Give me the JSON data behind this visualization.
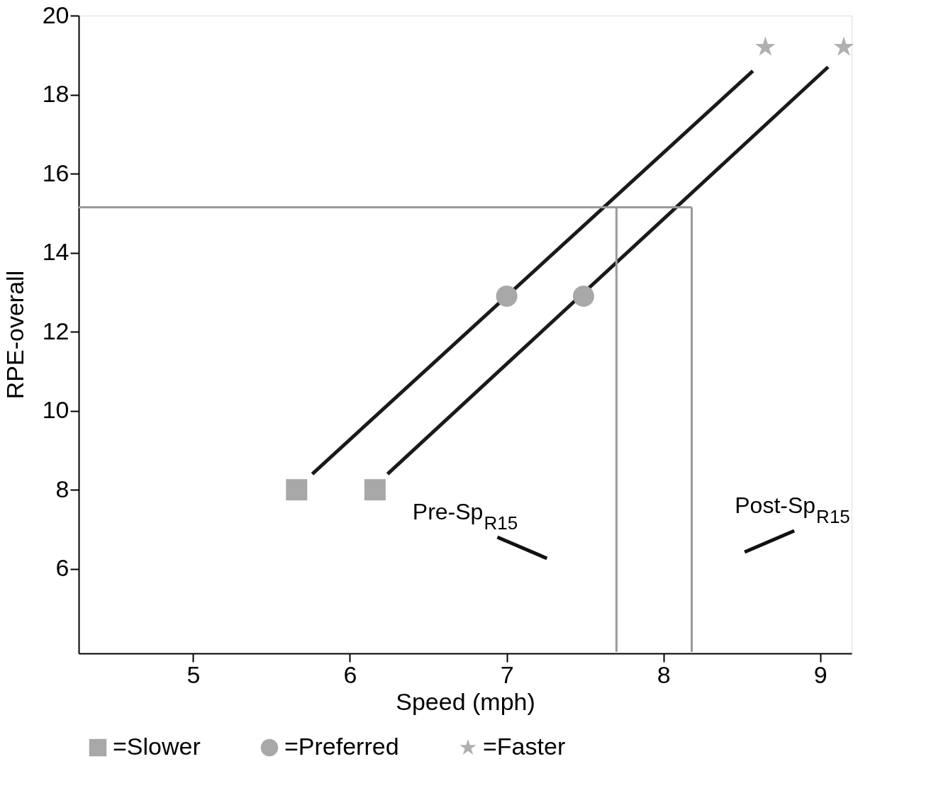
{
  "chart_data": {
    "type": "line",
    "xlabel": "Speed (mph)",
    "ylabel": "RPE-overall",
    "xlim": [
      4.27,
      9.2
    ],
    "ylim": [
      3.86,
      20
    ],
    "xticks": [
      5,
      6,
      7,
      8,
      9
    ],
    "yticks": [
      6,
      8,
      10,
      12,
      14,
      16,
      18,
      20
    ],
    "grid": false,
    "legend": "bottom",
    "series": [
      {
        "color": "#1a1a1a",
        "x": [
          5.76,
          8.57
        ],
        "values": [
          8.4,
          18.6
        ]
      },
      {
        "color": "#1a1a1a",
        "x": [
          6.24,
          9.05
        ],
        "values": [
          8.4,
          18.7
        ]
      },
      {
        "type": "line",
        "color": "#9a9a9a",
        "x": [
          4.27,
          8.18
        ],
        "values": [
          15.15,
          15.15
        ]
      },
      {
        "type": "line",
        "color": "#9a9a9a",
        "x": [
          7.7,
          7.7
        ],
        "values": [
          15.15,
          3.9
        ]
      },
      {
        "type": "line",
        "color": "#9a9a9a",
        "x": [
          8.18,
          8.18
        ],
        "values": [
          15.15,
          3.9
        ]
      },
      {
        "type": "scatter",
        "name": "=Slower",
        "color": "#a8a8a8",
        "marker": "square",
        "x": [
          5.66,
          6.16
        ],
        "values": [
          8,
          8
        ]
      },
      {
        "type": "scatter",
        "name": "=Preferred",
        "color": "#a8a8a8",
        "marker": "circle",
        "x": [
          7.0,
          7.49
        ],
        "values": [
          12.9,
          12.9
        ]
      },
      {
        "type": "scatter",
        "name": "=Faster",
        "color": "#b0b0b0",
        "marker": "star",
        "x": [
          8.65,
          9.15
        ],
        "values": [
          19.2,
          19.2
        ]
      }
    ],
    "annotations": [
      "Pre-Sp$_{R15}$",
      "Post-Sp$_{R15}$"
    ]
  }
}
